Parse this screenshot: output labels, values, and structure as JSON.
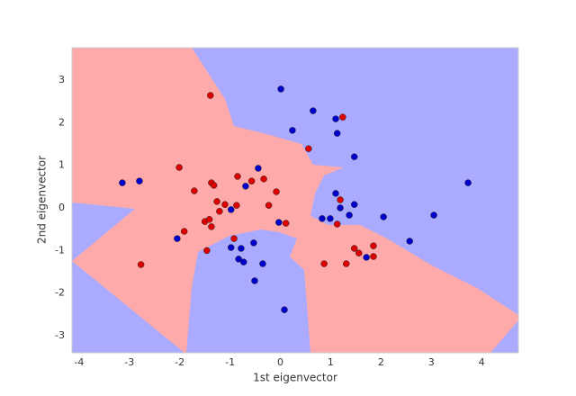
{
  "chart_data": {
    "type": "scatter",
    "xlabel": "1st eigenvector",
    "ylabel": "2nd eigenvector",
    "xlim": [
      -4.14,
      4.73
    ],
    "ylim": [
      -3.4,
      3.76
    ],
    "xticks": [
      -4,
      -3,
      -2,
      -1,
      0,
      1,
      2,
      3,
      4
    ],
    "yticks": [
      -3,
      -2,
      -1,
      0,
      1,
      2,
      3
    ],
    "grid": false,
    "series": [
      {
        "color": "#dd0000",
        "x": [
          -1.39,
          1.24,
          0.56,
          -2.01,
          -1.71,
          -1.37,
          -1.32,
          -0.85,
          -0.57,
          -0.33,
          -0.08,
          -0.23,
          -1.26,
          -1.1,
          -0.87,
          -1.21,
          -1.5,
          -1.41,
          -1.37,
          -1.91,
          0.11,
          1.19,
          1.13,
          -0.92,
          -1.46,
          -2.77,
          0.87,
          1.31,
          1.47,
          1.56,
          1.85,
          1.85
        ],
        "y": [
          2.64,
          2.13,
          1.39,
          0.95,
          0.4,
          0.59,
          0.53,
          0.74,
          0.63,
          0.68,
          0.38,
          0.06,
          0.15,
          0.08,
          0.06,
          -0.08,
          -0.32,
          -0.27,
          -0.44,
          -0.55,
          -0.36,
          0.19,
          -0.38,
          -0.72,
          -1.0,
          -1.33,
          -1.31,
          -1.31,
          -0.95,
          -1.06,
          -0.89,
          -1.14
        ]
      },
      {
        "color": "#0000cc",
        "x": [
          -3.14,
          -2.8,
          0.01,
          0.65,
          1.1,
          1.13,
          0.24,
          1.47,
          -0.44,
          3.73,
          1.1,
          1.47,
          1.19,
          1.37,
          0.83,
          0.99,
          2.05,
          3.05,
          2.57,
          1.71,
          -0.03,
          -0.98,
          -0.69,
          -2.05,
          -0.98,
          -0.78,
          -0.53,
          -0.83,
          -0.73,
          -0.35,
          -0.51,
          0.08
        ],
        "y": [
          0.59,
          0.63,
          2.79,
          2.28,
          2.09,
          1.75,
          1.82,
          1.2,
          0.93,
          0.59,
          0.34,
          0.08,
          0.0,
          -0.17,
          -0.25,
          -0.25,
          -0.21,
          -0.17,
          -0.78,
          -1.16,
          -0.34,
          -0.04,
          0.51,
          -0.72,
          -0.93,
          -0.95,
          -0.82,
          -1.2,
          -1.27,
          -1.31,
          -1.71,
          -2.39
        ]
      }
    ]
  }
}
